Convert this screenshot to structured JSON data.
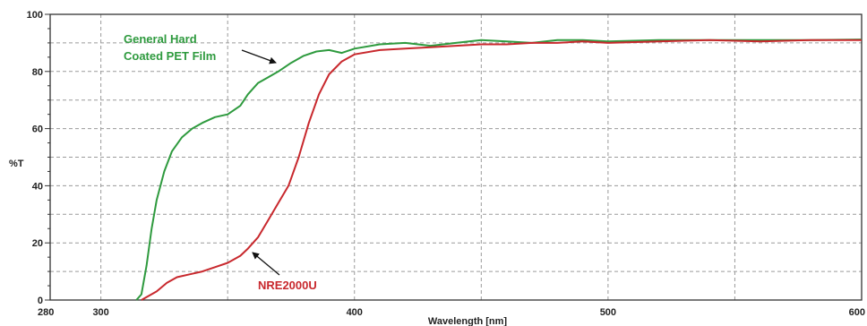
{
  "chart_data": {
    "type": "line",
    "xlabel": "Wavelength [nm]",
    "ylabel": "%T",
    "xlim": [
      280,
      600
    ],
    "ylim": [
      0,
      100
    ],
    "xticks": [
      280,
      300,
      400,
      500,
      600
    ],
    "yticks": [
      0,
      20,
      40,
      60,
      80,
      100
    ],
    "grid": true,
    "series": [
      {
        "name": "General Hard Coated PET Film",
        "label_lines": [
          "General Hard",
          "Coated PET Film"
        ],
        "color": "#2e9a3e",
        "points": [
          [
            314,
            0
          ],
          [
            316,
            2
          ],
          [
            318,
            12
          ],
          [
            320,
            25
          ],
          [
            322,
            35
          ],
          [
            325,
            45
          ],
          [
            328,
            52
          ],
          [
            332,
            57
          ],
          [
            336,
            60
          ],
          [
            340,
            62
          ],
          [
            345,
            64
          ],
          [
            350,
            65
          ],
          [
            355,
            68
          ],
          [
            358,
            72
          ],
          [
            362,
            76
          ],
          [
            366,
            78
          ],
          [
            370,
            80
          ],
          [
            375,
            83
          ],
          [
            380,
            85.5
          ],
          [
            385,
            87
          ],
          [
            390,
            87.5
          ],
          [
            395,
            86.5
          ],
          [
            400,
            88
          ],
          [
            410,
            89.5
          ],
          [
            420,
            90
          ],
          [
            430,
            89
          ],
          [
            440,
            90
          ],
          [
            450,
            91
          ],
          [
            460,
            90.5
          ],
          [
            470,
            90
          ],
          [
            480,
            91
          ],
          [
            490,
            91
          ],
          [
            500,
            90.5
          ],
          [
            520,
            91
          ],
          [
            540,
            91
          ],
          [
            560,
            91
          ],
          [
            580,
            91
          ],
          [
            600,
            91.2
          ]
        ]
      },
      {
        "name": "NRE2000U",
        "label_lines": [
          "NRE2000U"
        ],
        "color": "#c8282d",
        "points": [
          [
            316,
            0
          ],
          [
            318,
            1
          ],
          [
            322,
            3
          ],
          [
            326,
            6
          ],
          [
            330,
            8
          ],
          [
            335,
            9
          ],
          [
            340,
            10
          ],
          [
            345,
            11.5
          ],
          [
            350,
            13
          ],
          [
            355,
            15.5
          ],
          [
            358,
            18
          ],
          [
            362,
            22
          ],
          [
            366,
            28
          ],
          [
            370,
            34
          ],
          [
            374,
            40
          ],
          [
            378,
            50
          ],
          [
            382,
            62
          ],
          [
            386,
            72
          ],
          [
            390,
            79
          ],
          [
            395,
            83.5
          ],
          [
            400,
            86
          ],
          [
            410,
            87.5
          ],
          [
            420,
            88
          ],
          [
            430,
            88.5
          ],
          [
            440,
            89
          ],
          [
            450,
            89.5
          ],
          [
            460,
            89.5
          ],
          [
            470,
            90
          ],
          [
            480,
            90
          ],
          [
            490,
            90.5
          ],
          [
            500,
            90
          ],
          [
            520,
            90.5
          ],
          [
            540,
            91
          ],
          [
            560,
            90.5
          ],
          [
            580,
            91
          ],
          [
            600,
            91
          ]
        ]
      }
    ]
  }
}
